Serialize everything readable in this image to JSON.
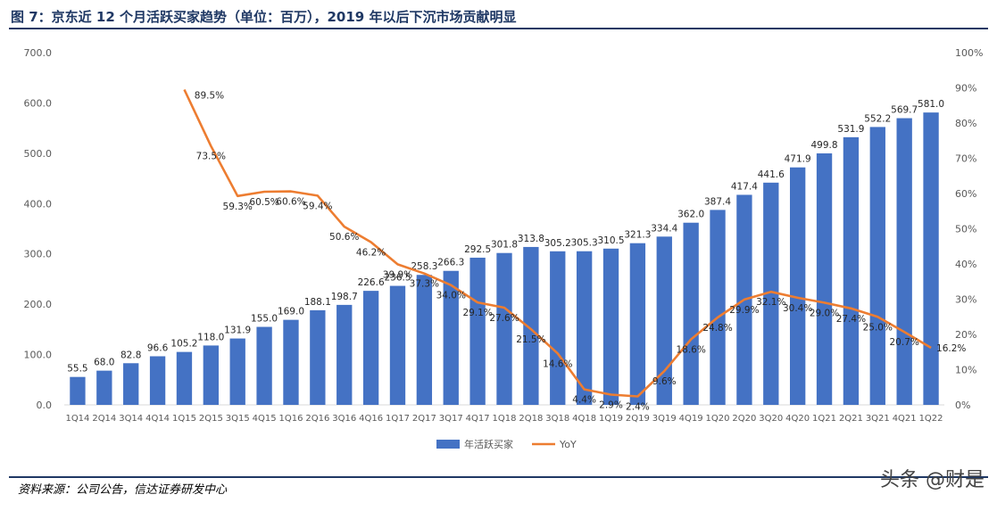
{
  "title": "图 7：京东近 12 个月活跃买家趋势（单位：百万），2019 年以后下沉市场贡献明显",
  "source": "资料来源：公司公告，信达证券研发中心",
  "watermark": "头条 @财是",
  "colors": {
    "bar": "#4472C4",
    "line": "#ED7D31",
    "title": "#1f3864",
    "axis": "#595959"
  },
  "chart_data": {
    "type": "bar+line",
    "categories": [
      "1Q14",
      "2Q14",
      "3Q14",
      "4Q14",
      "1Q15",
      "2Q15",
      "3Q15",
      "4Q15",
      "1Q16",
      "2Q16",
      "3Q16",
      "4Q16",
      "1Q17",
      "2Q17",
      "3Q17",
      "4Q17",
      "1Q18",
      "2Q18",
      "3Q18",
      "4Q18",
      "1Q19",
      "2Q19",
      "3Q19",
      "4Q19",
      "1Q20",
      "2Q20",
      "3Q20",
      "4Q20",
      "1Q21",
      "2Q21",
      "3Q21",
      "4Q21",
      "1Q22"
    ],
    "series": [
      {
        "name": "年活跃买家",
        "type": "bar",
        "axis": "left",
        "values": [
          55.5,
          68.0,
          82.8,
          96.6,
          105.2,
          118.0,
          131.9,
          155.0,
          169.0,
          188.1,
          198.7,
          226.6,
          236.5,
          258.3,
          266.3,
          292.5,
          301.8,
          313.8,
          305.2,
          305.3,
          310.5,
          321.3,
          334.4,
          362.0,
          387.4,
          417.4,
          441.6,
          471.9,
          499.8,
          531.9,
          552.2,
          569.7,
          581.0
        ],
        "labels": [
          "55.5",
          "68.0",
          "82.8",
          "96.6",
          "105.2",
          "118.0",
          "131.9",
          "155.0",
          "169.0",
          "188.1",
          "198.7",
          "226.6",
          "236.5",
          "258.3",
          "266.3",
          "292.5",
          "301.8",
          "313.8",
          "305.2",
          "305.3",
          "310.5",
          "321.3",
          "334.4",
          "362.0",
          "387.4",
          "417.4",
          "441.6",
          "471.9",
          "499.8",
          "531.9",
          "552.2",
          "569.7",
          "581.0"
        ]
      },
      {
        "name": "YoY",
        "type": "line",
        "axis": "right",
        "values": [
          null,
          null,
          null,
          null,
          89.5,
          73.5,
          59.3,
          60.5,
          60.6,
          59.4,
          50.6,
          46.2,
          39.9,
          37.3,
          34.0,
          29.1,
          27.6,
          21.5,
          14.6,
          4.4,
          2.9,
          2.4,
          9.6,
          18.6,
          24.8,
          29.9,
          32.1,
          30.4,
          29.0,
          27.4,
          25.0,
          20.7,
          16.2
        ],
        "labels": [
          "",
          "",
          "",
          "",
          "89.5%",
          "73.5%",
          "59.3%",
          "60.5%",
          "60.6%",
          "59.4%",
          "50.6%",
          "46.2%",
          "39.9%",
          "37.3%",
          "34.0%",
          "29.1%",
          "27.6%",
          "21.5%",
          "14.6%",
          "4.4%",
          "2.9%",
          "2.4%",
          "9.6%",
          "18.6%",
          "24.8%",
          "29.9%",
          "32.1%",
          "30.4%",
          "29.0%",
          "27.4%",
          "25.0%",
          "20.7%",
          "16.2%"
        ]
      }
    ],
    "y_left": {
      "min": 0,
      "max": 700,
      "ticks": [
        "0.0",
        "100.0",
        "200.0",
        "300.0",
        "400.0",
        "500.0",
        "600.0",
        "700.0"
      ]
    },
    "y_right": {
      "min": 0,
      "max": 100,
      "ticks": [
        "0%",
        "10%",
        "20%",
        "30%",
        "40%",
        "50%",
        "60%",
        "70%",
        "80%",
        "90%",
        "100%"
      ]
    },
    "legend": {
      "position": "bottom",
      "items": [
        "年活跃买家",
        "YoY"
      ]
    }
  }
}
